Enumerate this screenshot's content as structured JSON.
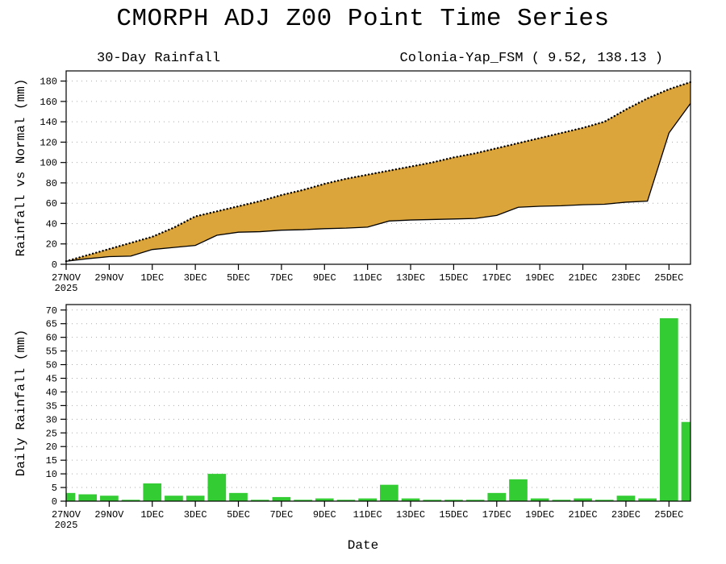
{
  "page_title": "CMORPH ADJ Z00 Point Time Series",
  "x_axis_title": "Date",
  "chart_data": [
    {
      "type": "area",
      "panel_title_left": "30-Day Rainfall",
      "panel_title_right": "Colonia-Yap_FSM ( 9.52, 138.13 )",
      "ylabel": "Rainfall vs Normal (mm)",
      "ylim": [
        0,
        190
      ],
      "yticks": [
        0,
        20,
        40,
        60,
        80,
        100,
        120,
        140,
        160,
        180
      ],
      "x_year_label": "2025",
      "x_tick_every": 2,
      "x_dates": [
        "27NOV",
        "28NOV",
        "29NOV",
        "30NOV",
        "1DEC",
        "2DEC",
        "3DEC",
        "4DEC",
        "5DEC",
        "6DEC",
        "7DEC",
        "8DEC",
        "9DEC",
        "10DEC",
        "11DEC",
        "12DEC",
        "13DEC",
        "14DEC",
        "15DEC",
        "16DEC",
        "17DEC",
        "18DEC",
        "19DEC",
        "20DEC",
        "21DEC",
        "22DEC",
        "23DEC",
        "24DEC",
        "25DEC",
        "26DEC"
      ],
      "series": [
        {
          "name": "Normal cumulative (dotted line, top of shaded band)",
          "values": [
            3,
            9,
            15,
            21,
            27,
            36,
            47,
            52,
            57,
            62,
            68,
            73,
            79,
            84,
            88,
            92,
            96,
            100,
            105,
            109,
            114,
            119,
            124,
            129,
            134,
            140,
            152,
            163,
            172,
            179
          ]
        },
        {
          "name": "Observed cumulative (solid line, bottom of shaded band)",
          "values": [
            3,
            5.5,
            7.5,
            8,
            14.5,
            16.5,
            18.5,
            28.5,
            31.5,
            32,
            33.5,
            34,
            35,
            35.5,
            36.5,
            42.5,
            43.5,
            44,
            44.5,
            45,
            48,
            56,
            57,
            57.5,
            58.5,
            59,
            61,
            62,
            129,
            158
          ]
        }
      ],
      "fill_color": "#DCA53C",
      "line_color": "#000000",
      "grid": "dotted horizontal"
    },
    {
      "type": "bar",
      "ylabel": "Daily Rainfall (mm)",
      "xlabel": "Date",
      "ylim": [
        0,
        72
      ],
      "yticks": [
        0,
        5,
        10,
        15,
        20,
        25,
        30,
        35,
        40,
        45,
        50,
        55,
        60,
        65,
        70
      ],
      "x_year_label": "2025",
      "categories": [
        "27NOV",
        "28NOV",
        "29NOV",
        "30NOV",
        "1DEC",
        "2DEC",
        "3DEC",
        "4DEC",
        "5DEC",
        "6DEC",
        "7DEC",
        "8DEC",
        "9DEC",
        "10DEC",
        "11DEC",
        "12DEC",
        "13DEC",
        "14DEC",
        "15DEC",
        "16DEC",
        "17DEC",
        "18DEC",
        "19DEC",
        "20DEC",
        "21DEC",
        "22DEC",
        "23DEC",
        "24DEC",
        "25DEC",
        "26DEC"
      ],
      "values": [
        3,
        2.5,
        2,
        0.5,
        6.5,
        2,
        2,
        10,
        3,
        0.5,
        1.5,
        0.5,
        1,
        0.5,
        1,
        6,
        1,
        0.5,
        0.5,
        0.5,
        3,
        8,
        1,
        0.5,
        1,
        0.5,
        2,
        1,
        67,
        29
      ],
      "bar_color": "#33CC33",
      "grid": "dotted horizontal"
    }
  ]
}
